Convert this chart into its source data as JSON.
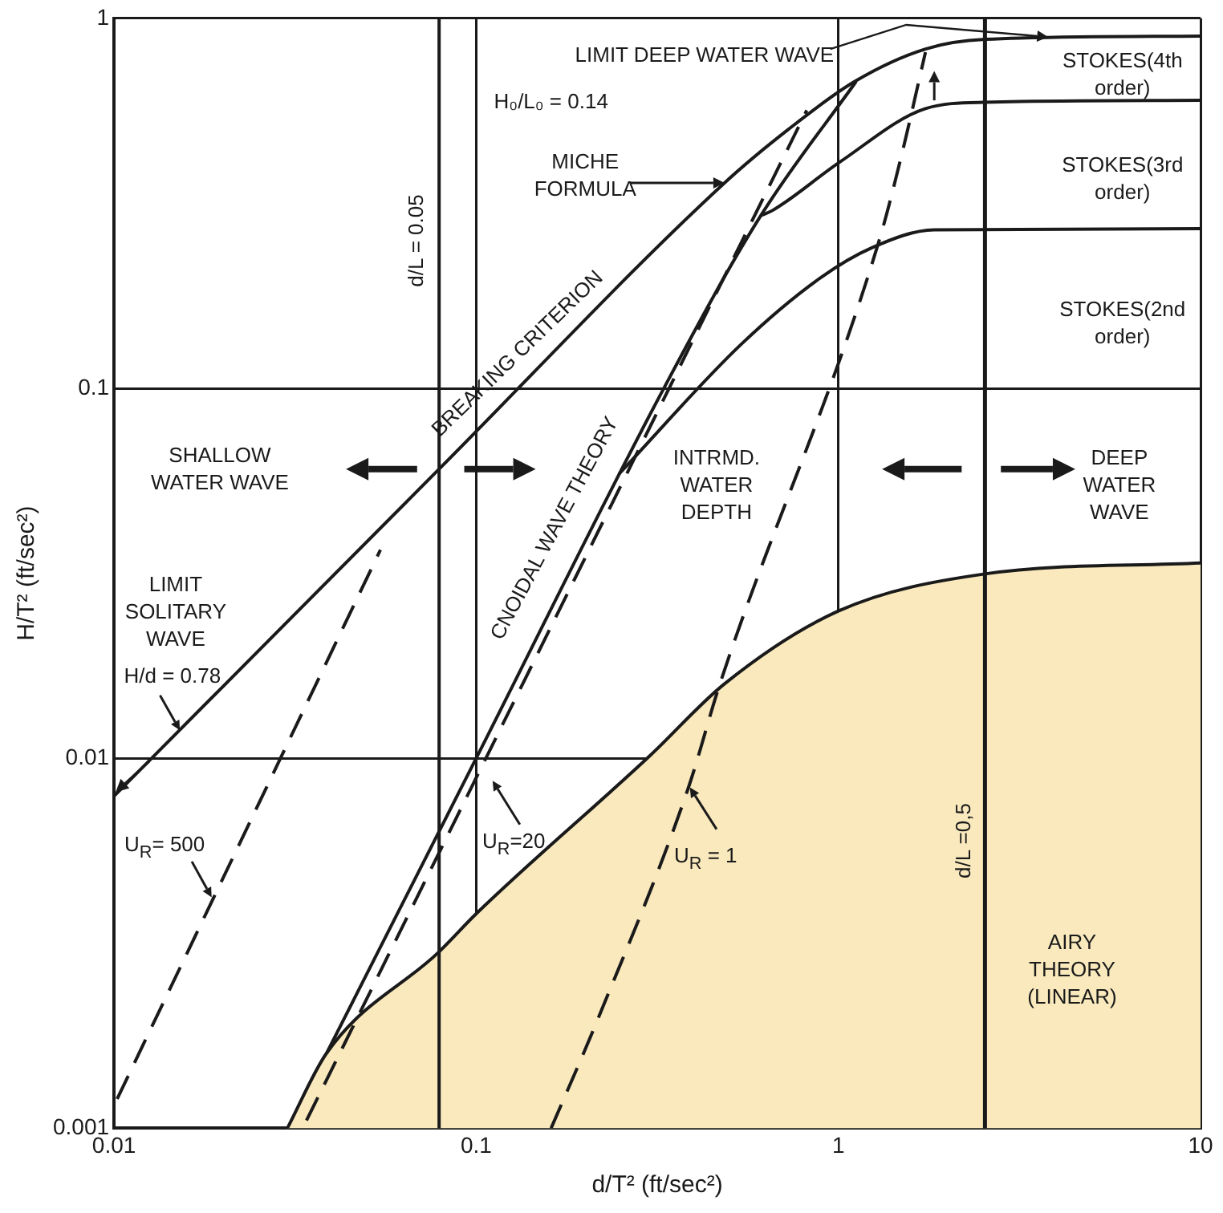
{
  "chart_data": {
    "type": "line",
    "xlabel": "d/T² (ft/sec²)",
    "ylabel": "H/T² (ft/sec²)",
    "log": "xy",
    "grid": true,
    "legend": false,
    "marker": "none",
    "xlim": [
      0.01,
      10
    ],
    "ylim": [
      0.001,
      1
    ],
    "xticks": [
      0.01,
      0.1,
      1,
      10
    ],
    "yticks": [
      0.001,
      0.01,
      0.1,
      1
    ],
    "series": [
      {
        "color": "#1a1a1a",
        "line_style": "solid",
        "x": [
          0.01,
          0.079,
          0.485,
          0.726,
          1.11,
          1.74,
          2.54,
          10
        ],
        "values": [
          0.0079,
          0.0605,
          0.359,
          0.5,
          0.675,
          0.826,
          0.877,
          0.895
        ]
      },
      {
        "color": "#1a1a1a",
        "line_style": "solid",
        "x": [
          0.0387,
          0.1,
          0.335,
          0.611,
          1.12
        ],
        "values": [
          0.0016,
          0.01,
          0.103,
          0.293,
          0.675
        ]
      },
      {
        "color": "#1a1a1a",
        "line_style": "solid",
        "x": [
          0.611,
          0.656,
          1.01,
          1.74,
          2.54,
          10
        ],
        "values": [
          0.293,
          0.302,
          0.409,
          0.57,
          0.593,
          0.6
        ]
      },
      {
        "color": "#1a1a1a",
        "line_style": "solid",
        "x": [
          0.248,
          0.537,
          0.887,
          1.24,
          1.84,
          10
        ],
        "values": [
          0.0587,
          0.131,
          0.198,
          0.24,
          0.268,
          0.27
        ]
      },
      {
        "type": "area",
        "color": "#f9e9bd",
        "line_style": "solid",
        "x": [
          0.0301,
          0.0387,
          0.079,
          0.1,
          0.303,
          0.485,
          1,
          2.54,
          10
        ],
        "values": [
          0.001,
          0.0016,
          0.003,
          0.0038,
          0.0102,
          0.0159,
          0.025,
          0.0315,
          0.0337
        ]
      },
      {
        "color": "#1a1a1a",
        "line_style": "dashed",
        "x": [
          0.0102,
          0.0544
        ],
        "values": [
          0.0012,
          0.0366
        ]
      },
      {
        "color": "#1a1a1a",
        "line_style": "dashed",
        "x": [
          0.034,
          0.818
        ],
        "values": [
          0.00105,
          0.564
        ]
      },
      {
        "color": "#1a1a1a",
        "line_style": "dashed",
        "x": [
          0.161,
          0.218,
          0.385,
          0.471,
          1.29,
          1.49,
          1.74
        ],
        "values": [
          0.001,
          0.002,
          0.0083,
          0.0159,
          0.247,
          0.421,
          0.81
        ]
      }
    ],
    "ref_lines": [
      {
        "axis": "x",
        "value": 0.079,
        "color": "#1a1a1a"
      },
      {
        "axis": "x",
        "value": 2.54,
        "color": "#1a1a1a"
      }
    ],
    "annotations": [
      {
        "text": "LIMIT DEEP WATER WAVE",
        "x": 3.8,
        "y": 0.89
      },
      "H₀/L₀ = 0.14",
      "MICHE\nFORMULA",
      "BREAKING CRITERION",
      "CNOIDAL WAVE THEORY",
      "SHALLOW\nWATER WAVE",
      "INTRMD.\nWATER\nDEPTH",
      "DEEP\nWATER\nWAVE",
      "STOKES(4th\norder)",
      "STOKES(3rd\norder)",
      "STOKES(2nd\norder)",
      "LIMIT\nSOLITARY\nWAVE",
      "H/d = 0.78",
      "U$_{R}$= 500",
      "U$_{R}$=20",
      "U$_{R}$ = 1",
      "AIRY\nTHEORY\n(LINEAR)",
      "d/L = 0.05",
      "d/L =0,5"
    ]
  }
}
